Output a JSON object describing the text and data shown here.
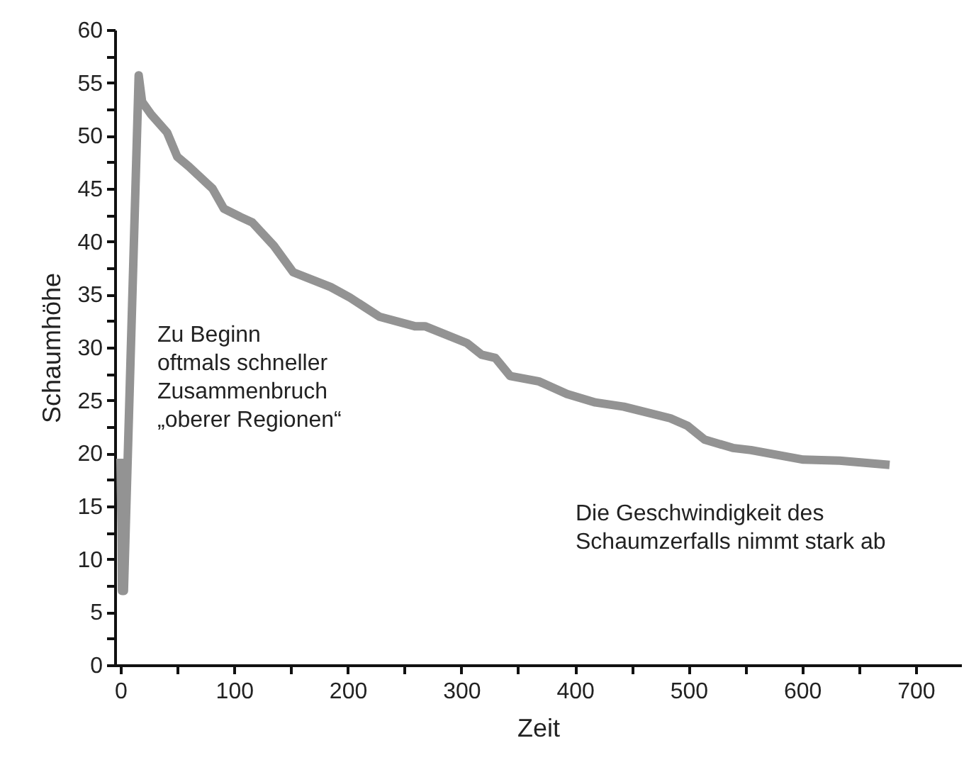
{
  "chart_data": {
    "type": "line",
    "xlabel": "Zeit",
    "ylabel": "Schaumhöhe",
    "annotations": [
      "Zu Beginn\noftmals schneller\nZusammenbruch\n„oberer Regionen“",
      "Die Geschwindigkeit des\nSchaumzerfalls nimmt stark ab"
    ],
    "xlim": [
      -5,
      740
    ],
    "ylim": [
      0,
      60
    ],
    "xticks": [
      0,
      {
        "value": 50,
        "label": null
      },
      100,
      {
        "value": 150,
        "label": null
      },
      200,
      {
        "value": 250,
        "label": null
      },
      300,
      {
        "value": 350,
        "label": null
      },
      400,
      {
        "value": 450,
        "label": null
      },
      500,
      {
        "value": 550,
        "label": null
      },
      600,
      {
        "value": 650,
        "label": null
      },
      700
    ],
    "yticks": [
      0,
      {
        "value": 2.5,
        "label": null
      },
      5,
      {
        "value": 7.5,
        "label": null
      },
      10,
      {
        "value": 12.5,
        "label": null
      },
      15,
      {
        "value": 17.5,
        "label": null
      },
      20,
      {
        "value": 22.5,
        "label": null
      },
      25,
      {
        "value": 27.5,
        "label": null
      },
      30,
      {
        "value": 32.5,
        "label": null
      },
      35,
      {
        "value": 37.5,
        "label": null
      },
      40,
      {
        "value": 42.5,
        "label": null
      },
      45,
      {
        "value": 47.5,
        "label": null
      },
      50,
      {
        "value": 52.5,
        "label": null
      },
      55,
      {
        "value": 57.5,
        "label": null
      },
      60
    ],
    "grid": false,
    "marker": "none",
    "line_style": "solid",
    "series": [
      {
        "color": "#939393",
        "x": [
          0,
          0.5,
          1,
          1.3,
          3,
          16,
          19,
          27,
          41,
          50,
          60,
          81,
          91,
          106,
          116,
          135,
          152,
          185,
          202,
          228,
          259,
          268,
          305,
          318,
          330,
          343,
          368,
          393,
          418,
          443,
          484,
          499,
          514,
          539,
          555,
          601,
          633,
          677
        ],
        "values": [
          19.5,
          16,
          12.5,
          7,
          7,
          55.7,
          53.2,
          52,
          50.3,
          48,
          47.1,
          45,
          43.1,
          42.3,
          41.8,
          39.6,
          37.1,
          35.7,
          34.7,
          32.9,
          32,
          32,
          30.4,
          29.3,
          29,
          27.3,
          26.8,
          25.6,
          24.8,
          24.4,
          23.3,
          22.6,
          21.3,
          20.5,
          20.3,
          19.4,
          19.3,
          18.9
        ]
      }
    ]
  }
}
